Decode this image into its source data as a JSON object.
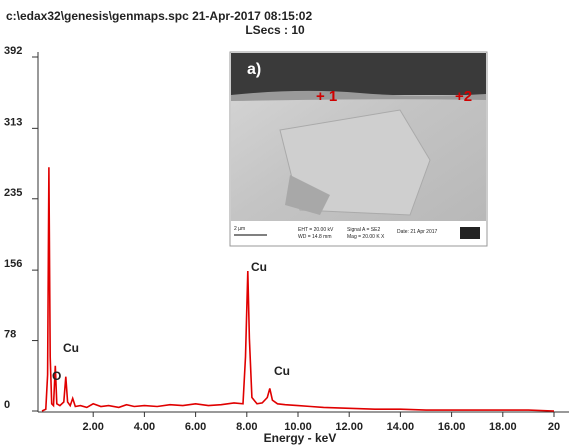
{
  "chart_data": {
    "type": "line",
    "title": "c:\\edax32\\genesis\\genmaps.spc  21-Apr-2017 08:15:02",
    "subtitle": "LSecs : 10",
    "x_label": "Energy - keV",
    "xlim": [
      0,
      20
    ],
    "ylim": [
      0,
      392
    ],
    "xticks": [
      {
        "value": 2,
        "label": "2.00"
      },
      {
        "value": 4,
        "label": "4.00"
      },
      {
        "value": 6,
        "label": "6.00"
      },
      {
        "value": 8,
        "label": "8.00"
      },
      {
        "value": 10,
        "label": "10.00"
      },
      {
        "value": 12,
        "label": "12.00"
      },
      {
        "value": 14,
        "label": "14.00"
      },
      {
        "value": 16,
        "label": "16.00"
      },
      {
        "value": 18,
        "label": "18.00"
      },
      20
    ],
    "yticks": [
      0,
      78,
      156,
      235,
      313,
      392
    ],
    "annotations": [
      "O",
      "Cu",
      "Cu",
      "Cu"
    ],
    "series": [
      {
        "color": "#e00000",
        "x": [
          0,
          0.15,
          0.22,
          0.27,
          0.32,
          0.38,
          0.45,
          0.52,
          0.58,
          0.7,
          0.85,
          0.93,
          1.0,
          1.1,
          1.2,
          1.3,
          1.5,
          1.75,
          2.0,
          2.3,
          2.6,
          3.0,
          3.3,
          3.6,
          4.0,
          4.5,
          5.0,
          5.5,
          6.0,
          6.5,
          7.0,
          7.5,
          7.85,
          7.95,
          8.04,
          8.1,
          8.2,
          8.4,
          8.6,
          8.8,
          8.9,
          9.0,
          9.2,
          9.5,
          10.0,
          10.5,
          11.0,
          12,
          13,
          14,
          15,
          16,
          17,
          18,
          19,
          20
        ],
        "values": [
          0,
          2,
          40,
          270,
          60,
          8,
          6,
          50,
          8,
          6,
          10,
          38,
          10,
          6,
          14,
          5,
          6,
          4,
          8,
          5,
          6,
          4,
          7,
          5,
          6,
          5,
          7,
          6,
          8,
          6,
          7,
          9,
          8,
          60,
          155,
          80,
          15,
          8,
          9,
          15,
          25,
          12,
          8,
          7,
          6,
          5,
          4,
          3,
          2,
          2,
          1,
          1,
          1,
          1,
          1,
          0
        ]
      }
    ],
    "inset": {
      "label": "a)",
      "points": [
        "+ 1",
        "+2"
      ],
      "scale": "2 µm",
      "info": [
        "EHT = 20.00 kV",
        "WD = 14.8 mm",
        "Signal A = SE2",
        "Mag = 20.00 K X",
        "Date: 21 Apr 2017"
      ]
    }
  }
}
